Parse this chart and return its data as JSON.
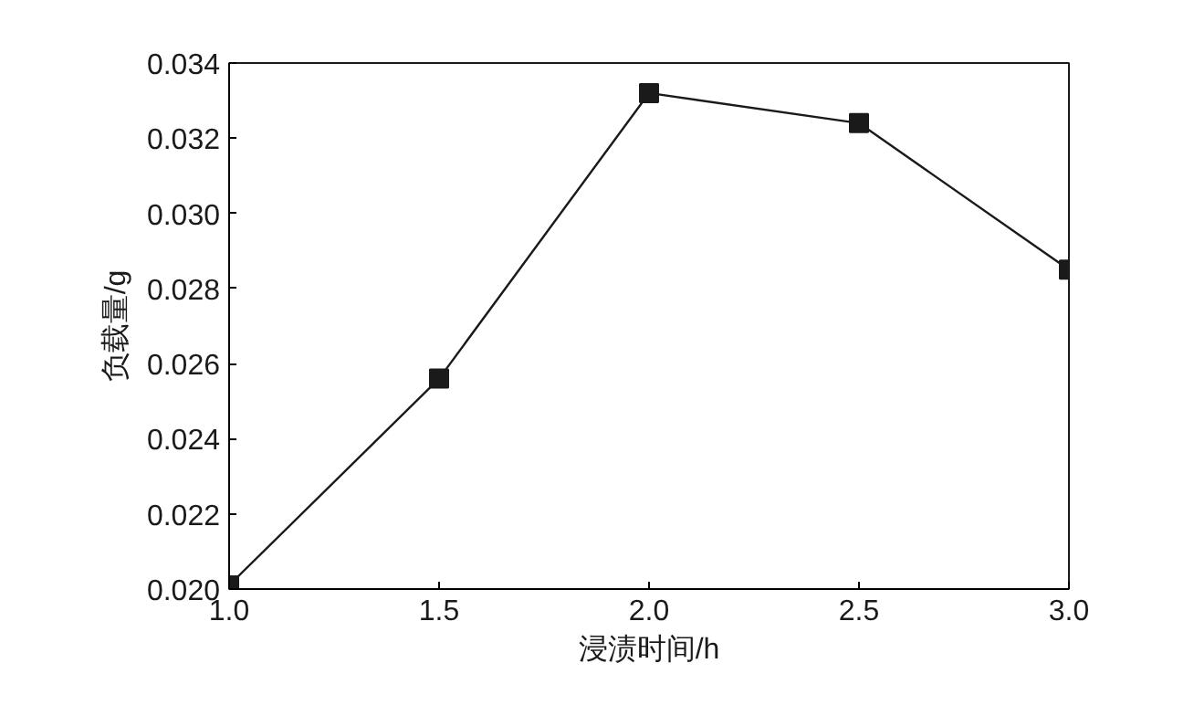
{
  "chart_data": {
    "type": "line",
    "xlabel": "浸渍时间/h",
    "ylabel": "负载量/g",
    "x": [
      1.0,
      1.5,
      2.0,
      2.5,
      3.0
    ],
    "series": [
      {
        "color": "#1a1a1a",
        "values": [
          0.0201,
          0.0256,
          0.0332,
          0.0324,
          0.0285
        ]
      }
    ],
    "marker": "square",
    "line_style": "solid",
    "grid": false,
    "xlim": [
      1.0,
      3.0
    ],
    "ylim": [
      0.02,
      0.034
    ],
    "xticks": [
      {
        "value": 1.0,
        "label": "1.0"
      },
      {
        "value": 1.5,
        "label": "1.5"
      },
      {
        "value": 2.0,
        "label": "2.0"
      },
      {
        "value": 2.5,
        "label": "2.5"
      },
      {
        "value": 3.0,
        "label": "3.0"
      }
    ],
    "yticks": [
      {
        "value": 0.02,
        "label": "0.020"
      },
      {
        "value": 0.022,
        "label": "0.022"
      },
      {
        "value": 0.024,
        "label": "0.024"
      },
      {
        "value": 0.026,
        "label": "0.026"
      },
      {
        "value": 0.028,
        "label": "0.028"
      },
      {
        "value": 0.03,
        "label": "0.030"
      },
      {
        "value": 0.032,
        "label": "0.032"
      },
      {
        "value": 0.034,
        "label": "0.034"
      }
    ]
  }
}
